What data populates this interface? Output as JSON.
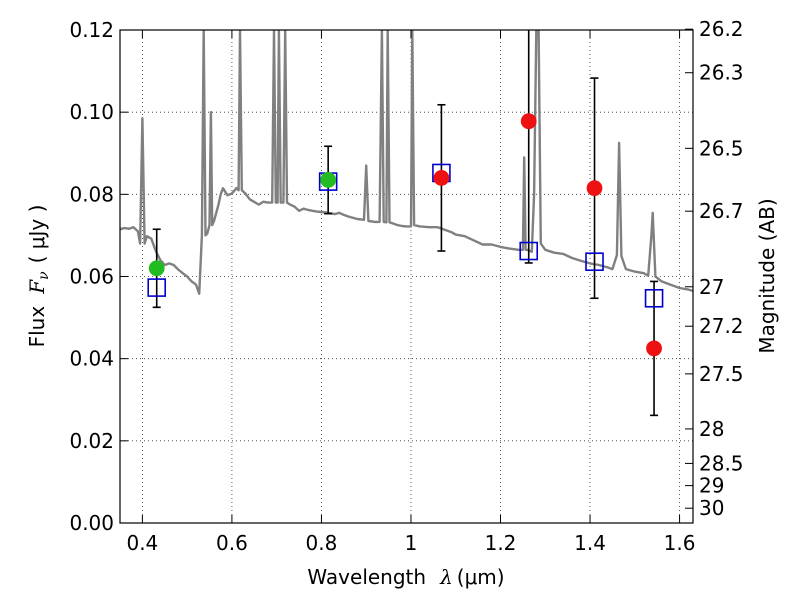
{
  "chart_data": {
    "type": "scatter",
    "xlabel": "Wavelength",
    "xlabel_symbol": "λ",
    "xlabel_unit": "(μm)",
    "ylabel": "Flux",
    "ylabel_symbol": "F",
    "ylabel_subscript": "ν",
    "ylabel_unit": "( μJy )",
    "y2label": "Magnitude (AB)",
    "xlim": [
      0.35,
      1.63
    ],
    "ylim": [
      0.0,
      0.12
    ],
    "grid": true,
    "x_ticks": [
      0.4,
      0.6,
      0.8,
      1.0,
      1.2,
      1.4,
      1.6
    ],
    "x_tick_labels": [
      "0.4",
      "0.6",
      "0.8",
      "1",
      "1.2",
      "1.4",
      "1.6"
    ],
    "y_ticks": [
      0.0,
      0.02,
      0.04,
      0.06,
      0.08,
      0.1,
      0.12
    ],
    "y_tick_labels": [
      "0.00",
      "0.02",
      "0.04",
      "0.06",
      "0.08",
      "0.10",
      "0.12"
    ],
    "magnitude_ticks": [
      {
        "label": "26.2",
        "flux": 0.1202
      },
      {
        "label": "26.3",
        "flux": 0.1096
      },
      {
        "label": "26.5",
        "flux": 0.0912
      },
      {
        "label": "26.7",
        "flux": 0.0759
      },
      {
        "label": "27",
        "flux": 0.0575
      },
      {
        "label": "27.2",
        "flux": 0.0479
      },
      {
        "label": "27.5",
        "flux": 0.0363
      },
      {
        "label": "28",
        "flux": 0.0229
      },
      {
        "label": "28.5",
        "flux": 0.0145
      },
      {
        "label": "29",
        "flux": 0.0091
      },
      {
        "label": "30",
        "flux": 0.0036
      }
    ],
    "series": [
      {
        "kind": "model-spectrum",
        "color": "#808080",
        "points": [
          [
            0.35,
            0.0715
          ],
          [
            0.36,
            0.0718
          ],
          [
            0.37,
            0.0716
          ],
          [
            0.38,
            0.072
          ],
          [
            0.39,
            0.071
          ],
          [
            0.395,
            0.068
          ],
          [
            0.4,
            0.0985
          ],
          [
            0.405,
            0.068
          ],
          [
            0.41,
            0.0698
          ],
          [
            0.42,
            0.0692
          ],
          [
            0.43,
            0.0662
          ],
          [
            0.44,
            0.064
          ],
          [
            0.45,
            0.0628
          ],
          [
            0.46,
            0.0632
          ],
          [
            0.47,
            0.0628
          ],
          [
            0.48,
            0.0617
          ],
          [
            0.49,
            0.0608
          ],
          [
            0.5,
            0.06
          ],
          [
            0.51,
            0.0588
          ],
          [
            0.52,
            0.058
          ],
          [
            0.527,
            0.0558
          ],
          [
            0.533,
            0.07
          ],
          [
            0.537,
            0.12
          ],
          [
            0.541,
            0.07
          ],
          [
            0.545,
            0.0705
          ],
          [
            0.55,
            0.0725
          ],
          [
            0.553,
            0.1
          ],
          [
            0.556,
            0.0725
          ],
          [
            0.56,
            0.0735
          ],
          [
            0.57,
            0.0775
          ],
          [
            0.575,
            0.08
          ],
          [
            0.58,
            0.0815
          ],
          [
            0.59,
            0.0798
          ],
          [
            0.6,
            0.0802
          ],
          [
            0.61,
            0.0815
          ],
          [
            0.615,
            0.081
          ],
          [
            0.618,
            0.12
          ],
          [
            0.622,
            0.081
          ],
          [
            0.63,
            0.0802
          ],
          [
            0.64,
            0.0788
          ],
          [
            0.66,
            0.0775
          ],
          [
            0.67,
            0.0782
          ],
          [
            0.68,
            0.078
          ],
          [
            0.69,
            0.078
          ],
          [
            0.694,
            0.12
          ],
          [
            0.698,
            0.078
          ],
          [
            0.702,
            0.078
          ],
          [
            0.705,
            0.12
          ],
          [
            0.709,
            0.078
          ],
          [
            0.715,
            0.078
          ],
          [
            0.719,
            0.12
          ],
          [
            0.723,
            0.078
          ],
          [
            0.73,
            0.0775
          ],
          [
            0.74,
            0.077
          ],
          [
            0.75,
            0.076
          ],
          [
            0.76,
            0.0765
          ],
          [
            0.77,
            0.0762
          ],
          [
            0.78,
            0.076
          ],
          [
            0.79,
            0.0758
          ],
          [
            0.8,
            0.0757
          ],
          [
            0.81,
            0.0756
          ],
          [
            0.83,
            0.0752
          ],
          [
            0.84,
            0.0755
          ],
          [
            0.85,
            0.075
          ],
          [
            0.86,
            0.0746
          ],
          [
            0.88,
            0.074
          ],
          [
            0.895,
            0.0738
          ],
          [
            0.9,
            0.087
          ],
          [
            0.905,
            0.0735
          ],
          [
            0.92,
            0.0733
          ],
          [
            0.93,
            0.0733
          ],
          [
            0.935,
            0.12
          ],
          [
            0.939,
            0.0733
          ],
          [
            0.945,
            0.0732
          ],
          [
            0.948,
            0.12
          ],
          [
            0.952,
            0.0732
          ],
          [
            0.96,
            0.0729
          ],
          [
            0.97,
            0.0725
          ],
          [
            0.98,
            0.0723
          ],
          [
            0.99,
            0.0722
          ],
          [
            1.0,
            0.0722
          ],
          [
            1.003,
            0.12
          ],
          [
            1.007,
            0.0725
          ],
          [
            1.02,
            0.0722
          ],
          [
            1.04,
            0.072
          ],
          [
            1.06,
            0.072
          ],
          [
            1.08,
            0.0712
          ],
          [
            1.09,
            0.0708
          ],
          [
            1.1,
            0.0702
          ],
          [
            1.12,
            0.0698
          ],
          [
            1.14,
            0.0688
          ],
          [
            1.16,
            0.0678
          ],
          [
            1.18,
            0.0678
          ],
          [
            1.2,
            0.0672
          ],
          [
            1.22,
            0.0668
          ],
          [
            1.24,
            0.0665
          ],
          [
            1.25,
            0.0665
          ],
          [
            1.253,
            0.089
          ],
          [
            1.256,
            0.0665
          ],
          [
            1.26,
            0.0665
          ],
          [
            1.27,
            0.066
          ],
          [
            1.275,
            0.08
          ],
          [
            1.28,
            0.12
          ],
          [
            1.285,
            0.12
          ],
          [
            1.29,
            0.068
          ],
          [
            1.3,
            0.0665
          ],
          [
            1.32,
            0.0658
          ],
          [
            1.34,
            0.0655
          ],
          [
            1.36,
            0.0645
          ],
          [
            1.38,
            0.0638
          ],
          [
            1.4,
            0.0632
          ],
          [
            1.42,
            0.0628
          ],
          [
            1.44,
            0.0622
          ],
          [
            1.45,
            0.0618
          ],
          [
            1.46,
            0.0652
          ],
          [
            1.465,
            0.0925
          ],
          [
            1.47,
            0.065
          ],
          [
            1.48,
            0.0618
          ],
          [
            1.5,
            0.0612
          ],
          [
            1.52,
            0.0608
          ],
          [
            1.53,
            0.0602
          ],
          [
            1.537,
            0.07
          ],
          [
            1.54,
            0.0755
          ],
          [
            1.546,
            0.06
          ],
          [
            1.56,
            0.0588
          ],
          [
            1.58,
            0.058
          ],
          [
            1.6,
            0.0572
          ],
          [
            1.62,
            0.0568
          ],
          [
            1.63,
            0.0565
          ]
        ]
      },
      {
        "kind": "model-photometry",
        "marker": "open-square",
        "color": "#0000cc",
        "points": [
          [
            0.432,
            0.0573
          ],
          [
            0.815,
            0.0831
          ],
          [
            1.068,
            0.0852
          ],
          [
            1.263,
            0.0662
          ],
          [
            1.41,
            0.0636
          ],
          [
            1.543,
            0.0547
          ]
        ]
      },
      {
        "kind": "observed-green",
        "marker": "filled-circle",
        "color": "#22bb22",
        "points": [
          {
            "x": 0.432,
            "y": 0.062,
            "err": 0.0095
          },
          {
            "x": 0.815,
            "y": 0.0835,
            "err": 0.0082
          }
        ]
      },
      {
        "kind": "observed-red",
        "marker": "filled-circle",
        "color": "#ee1111",
        "points": [
          {
            "x": 1.068,
            "y": 0.084,
            "err": 0.0178
          },
          {
            "x": 1.263,
            "y": 0.0978,
            "err": 0.0345
          },
          {
            "x": 1.41,
            "y": 0.0815,
            "err": 0.0268
          },
          {
            "x": 1.543,
            "y": 0.0425,
            "err": 0.0163
          }
        ]
      }
    ]
  }
}
